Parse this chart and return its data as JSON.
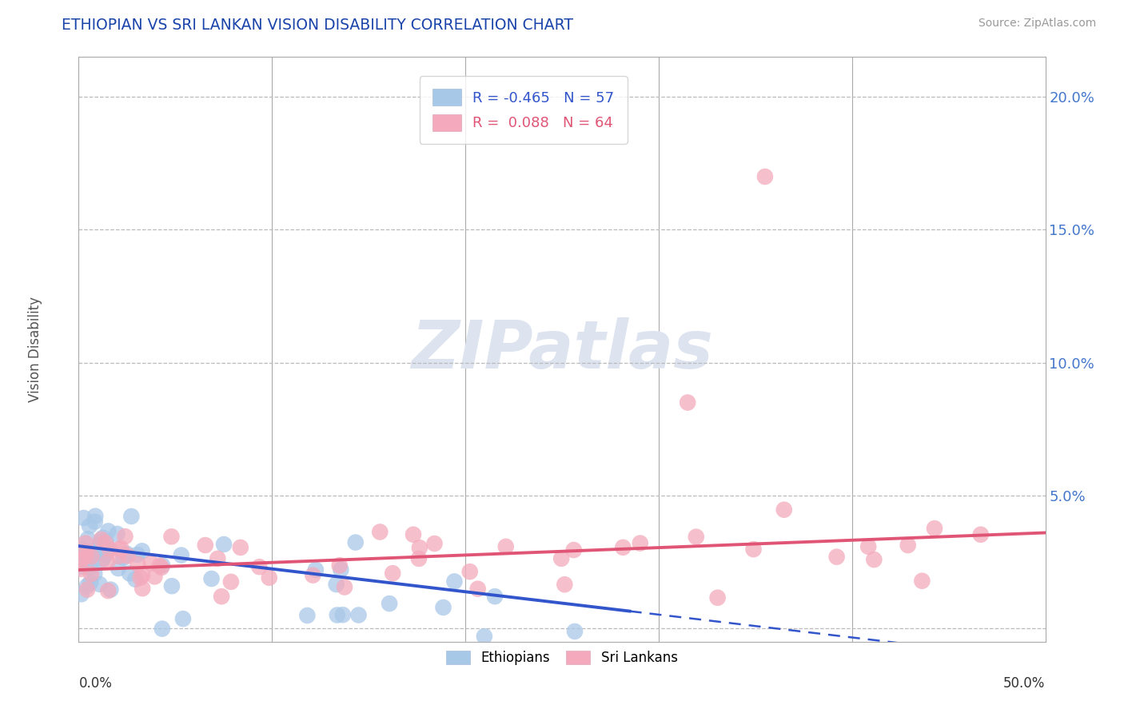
{
  "title": "ETHIOPIAN VS SRI LANKAN VISION DISABILITY CORRELATION CHART",
  "source": "Source: ZipAtlas.com",
  "ylabel": "Vision Disability",
  "xlim": [
    0.0,
    0.5
  ],
  "ylim": [
    -0.005,
    0.215
  ],
  "yticks": [
    0.0,
    0.05,
    0.1,
    0.15,
    0.2
  ],
  "ytick_labels": [
    "",
    "5.0%",
    "10.0%",
    "15.0%",
    "20.0%"
  ],
  "ethiopian_color": "#a8c8e8",
  "srilankan_color": "#f4aabc",
  "trend_ethiopian_color": "#3355cc",
  "trend_srilankan_color": "#e05575",
  "background_color": "#ffffff",
  "grid_color": "#bbbbbb",
  "title_color": "#1a44aa",
  "axis_color": "#aaaaaa",
  "watermark_color": "#dde4f0",
  "r_ethiopian": -0.465,
  "n_ethiopian": 57,
  "r_srilankan": 0.088,
  "n_srilankan": 64,
  "eth_trend_solid_end": 0.285,
  "eth_trend_start_y": 0.03,
  "eth_trend_end_y": -0.01,
  "sl_trend_start_y": 0.022,
  "sl_trend_end_y": 0.035
}
